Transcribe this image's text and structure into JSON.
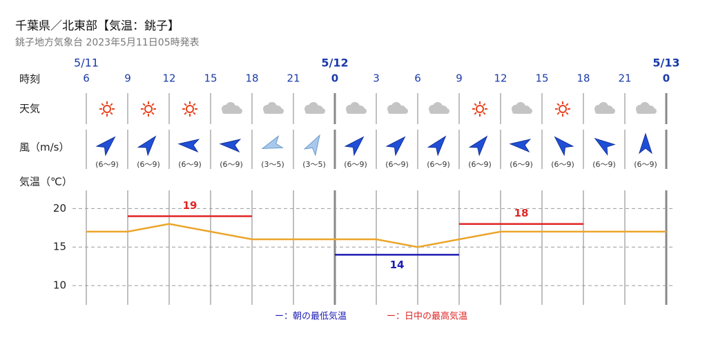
{
  "chart_data": {
    "type": "line",
    "title": "千葉県／北東部【気温：銚子】",
    "subtitle": "銚子地方気象台 2023年5月11日05時発表",
    "row_labels": {
      "time": "時刻",
      "weather": "天気",
      "wind": "風（m/s）",
      "temp": "気温（℃）"
    },
    "categories": [
      "6",
      "9",
      "12",
      "15",
      "18",
      "21",
      "0",
      "3",
      "6",
      "9",
      "12",
      "15",
      "18",
      "21",
      "0"
    ],
    "date_labels": [
      "5/11",
      null,
      null,
      null,
      null,
      null,
      "5/12",
      null,
      null,
      null,
      null,
      null,
      null,
      null,
      "5/13"
    ],
    "wind_speeds": [
      "(6～9)",
      "(6～9)",
      "(6～9)",
      "(6～9)",
      "(3～5)",
      "(3～5)",
      "(6～9)",
      "(6～9)",
      "(6～9)",
      "(6～9)",
      "(6～9)",
      "(6～9)",
      "(6～9)",
      "(6～9)"
    ],
    "temperature": {
      "color": "#eba52a",
      "values": [
        17,
        17,
        18,
        17,
        16,
        16,
        16,
        16,
        15,
        16,
        17,
        17,
        17,
        17,
        17
      ]
    },
    "min_temp": {
      "name": "ー：朝の最低気温",
      "color": "#1c1cb4",
      "values": [
        14
      ],
      "from": [
        6
      ],
      "to": [
        9
      ]
    },
    "max_temp": {
      "name": "ー：日中の最高気温",
      "color": "#e02424",
      "values": [
        19,
        18
      ],
      "from": [
        1,
        9
      ],
      "to": [
        4,
        12
      ]
    },
    "ylim": [
      7.5,
      22
    ],
    "yticks": [
      10,
      15,
      20
    ],
    "grid": true
  }
}
